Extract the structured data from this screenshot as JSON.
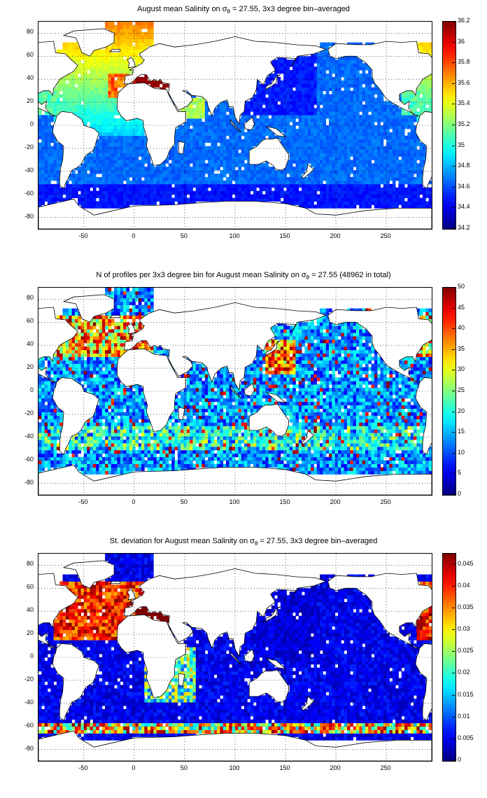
{
  "panels": [
    {
      "title_prefix": "August mean Salinity on ",
      "title_symbol": "σ",
      "title_sub": "θ",
      "title_suffix": " = 27.55, 3x3 degree bin–averaged",
      "field": "mean_salinity",
      "colorbar_ticks": [
        "36.2",
        "36",
        "35.8",
        "35.6",
        "35.4",
        "35.2",
        "35",
        "34.8",
        "34.6",
        "34.4",
        "34.2"
      ],
      "colorbar_range": [
        34.2,
        36.2
      ]
    },
    {
      "title_prefix": "N of profiles per 3x3 degree bin for August mean Salinity on ",
      "title_symbol": "σ",
      "title_sub": "θ",
      "title_suffix": " = 27.55 (48962 in total)",
      "field": "profile_count",
      "colorbar_ticks": [
        "50",
        "45",
        "40",
        "35",
        "30",
        "25",
        "20",
        "15",
        "10",
        "5",
        "0"
      ],
      "colorbar_range": [
        0,
        50
      ]
    },
    {
      "title_prefix": "St. deviation for August mean Salinity on ",
      "title_symbol": "σ",
      "title_sub": "θ",
      "title_suffix": " = 27.55, 3x3 degree bin–averaged",
      "field": "salinity_std",
      "colorbar_ticks": [
        "0.045",
        "0.04",
        "0.035",
        "0.03",
        "0.025",
        "0.02",
        "0.015",
        "0.01",
        "0.005",
        "0"
      ],
      "colorbar_range": [
        0,
        0.0475
      ]
    }
  ],
  "map": {
    "x_ticks": [
      "-50",
      "0",
      "50",
      "100",
      "150",
      "200",
      "250"
    ],
    "y_ticks": [
      "80",
      "60",
      "40",
      "20",
      "0",
      "-20",
      "-40",
      "-60",
      "-80"
    ],
    "lon_range": [
      -95,
      295
    ],
    "lat_range": [
      -90,
      90
    ],
    "colormap": "jet",
    "gridlines": "dotted"
  }
}
